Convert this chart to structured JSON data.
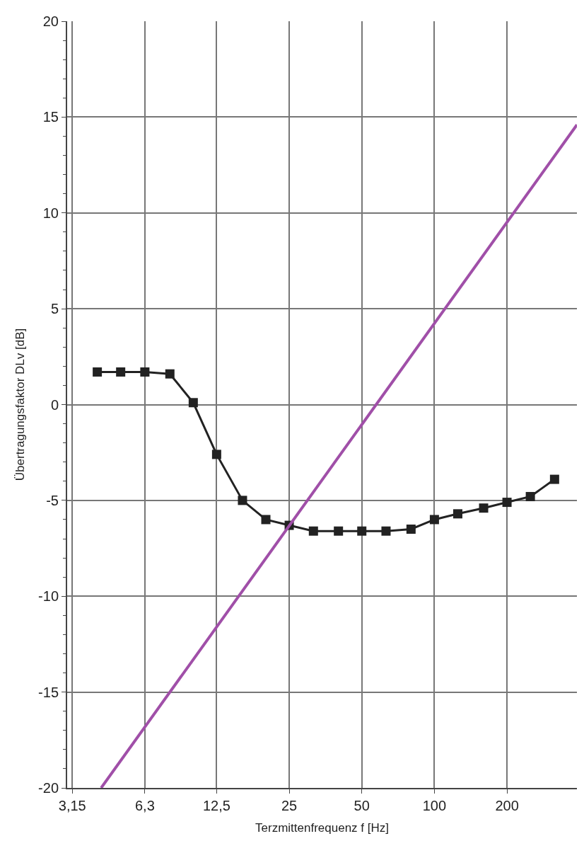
{
  "chart_data": {
    "type": "line",
    "xlabel": "Terzmittenfrequenz f [Hz]",
    "ylabel": "Übertragungsfaktor DLv [dB]",
    "log": "x",
    "grid": true,
    "legend": false,
    "xlim": [
      3.0,
      390
    ],
    "ylim": [
      -20,
      20
    ],
    "xticks": [
      {
        "value": 3.15,
        "label": "3,15"
      },
      {
        "value": 6.3,
        "label": "6,3"
      },
      {
        "value": 12.5,
        "label": "12,5"
      },
      25,
      50,
      100,
      200
    ],
    "yticks": [
      -20,
      -15,
      -10,
      -5,
      0,
      5,
      10,
      15,
      20
    ],
    "series": [
      {
        "color": "#222222",
        "marker": "square",
        "line_style": "solid",
        "x": [
          4,
          5,
          6.3,
          8,
          10,
          12.5,
          16,
          20,
          25,
          31.5,
          40,
          50,
          63,
          80,
          100,
          125,
          160,
          200,
          250,
          315
        ],
        "values": [
          1.7,
          1.7,
          1.7,
          1.6,
          0.1,
          -2.6,
          -5.0,
          -6.0,
          -6.3,
          -6.6,
          -6.6,
          -6.6,
          -6.6,
          -6.5,
          -6.0,
          -5.7,
          -5.4,
          -5.1,
          -4.8,
          -3.9
        ]
      },
      {
        "color": "#a04fa8",
        "marker": "none",
        "line_style": "solid",
        "x": [
          4.15,
          390
        ],
        "values": [
          -20,
          14.6
        ]
      }
    ]
  }
}
